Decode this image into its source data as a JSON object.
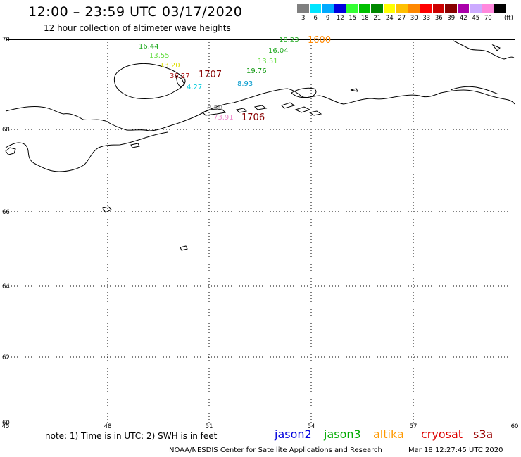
{
  "header": {
    "title": "12:00 – 23:59 UTC 03/17/2020",
    "subtitle": "12 hour collection of altimeter wave heights"
  },
  "legend": {
    "unit": "(ft)",
    "bins": [
      {
        "label": "3",
        "color": "#808080"
      },
      {
        "label": "6",
        "color": "#00e5ff"
      },
      {
        "label": "9",
        "color": "#00aaff"
      },
      {
        "label": "12",
        "color": "#0000e0"
      },
      {
        "label": "15",
        "color": "#33ff33"
      },
      {
        "label": "18",
        "color": "#00c000"
      },
      {
        "label": "21",
        "color": "#008800"
      },
      {
        "label": "24",
        "color": "#ffff00"
      },
      {
        "label": "27",
        "color": "#ffc000"
      },
      {
        "label": "30",
        "color": "#ff8800"
      },
      {
        "label": "33",
        "color": "#ff0000"
      },
      {
        "label": "36",
        "color": "#cc0000"
      },
      {
        "label": "39",
        "color": "#880000"
      },
      {
        "label": "42",
        "color": "#aa00aa"
      },
      {
        "label": "45",
        "color": "#ccaaff"
      },
      {
        "label": "70",
        "color": "#ff88dd"
      },
      {
        "label": "",
        "color": "#000000"
      }
    ]
  },
  "axes": {
    "lon_ticks": [
      "45",
      "48",
      "51",
      "54",
      "57",
      "60"
    ],
    "lat_ticks": [
      "70",
      "68",
      "66",
      "64",
      "62",
      "60"
    ]
  },
  "observations": [
    {
      "value": "16.44",
      "color": "#22aa22"
    },
    {
      "value": "13.55",
      "color": "#66dd44"
    },
    {
      "value": "13.20",
      "color": "#dddd00"
    },
    {
      "value": "36.27",
      "color": "#aa1111"
    },
    {
      "value": "4.27",
      "color": "#00ccdd"
    },
    {
      "value": "1707",
      "color": "#880000"
    },
    {
      "value": "18.23",
      "color": "#22aa22"
    },
    {
      "value": "1600",
      "color": "#ff8800"
    },
    {
      "value": "16.04",
      "color": "#22aa22"
    },
    {
      "value": "13.51",
      "color": "#66dd44"
    },
    {
      "value": "19.76",
      "color": "#119911"
    },
    {
      "value": "8.93",
      "color": "#0099cc"
    },
    {
      "value": "0.59",
      "color": "#888888"
    },
    {
      "value": "73.91",
      "color": "#ee88cc"
    },
    {
      "value": "1706",
      "color": "#880000"
    }
  ],
  "footer": {
    "note": "note:  1) Time is in UTC;  2) SWH is in feet",
    "missions": [
      {
        "name": "jason2",
        "color": "#0000dd"
      },
      {
        "name": "jason3",
        "color": "#00aa00"
      },
      {
        "name": "altika",
        "color": "#ff9900"
      },
      {
        "name": "cryosat",
        "color": "#dd0000"
      },
      {
        "name": "s3a",
        "color": "#990000"
      }
    ],
    "credit": "NOAA/NESDIS Center for Satellite Applications and Research",
    "timestamp": "Mar 18 12:27:45 UTC 2020"
  }
}
